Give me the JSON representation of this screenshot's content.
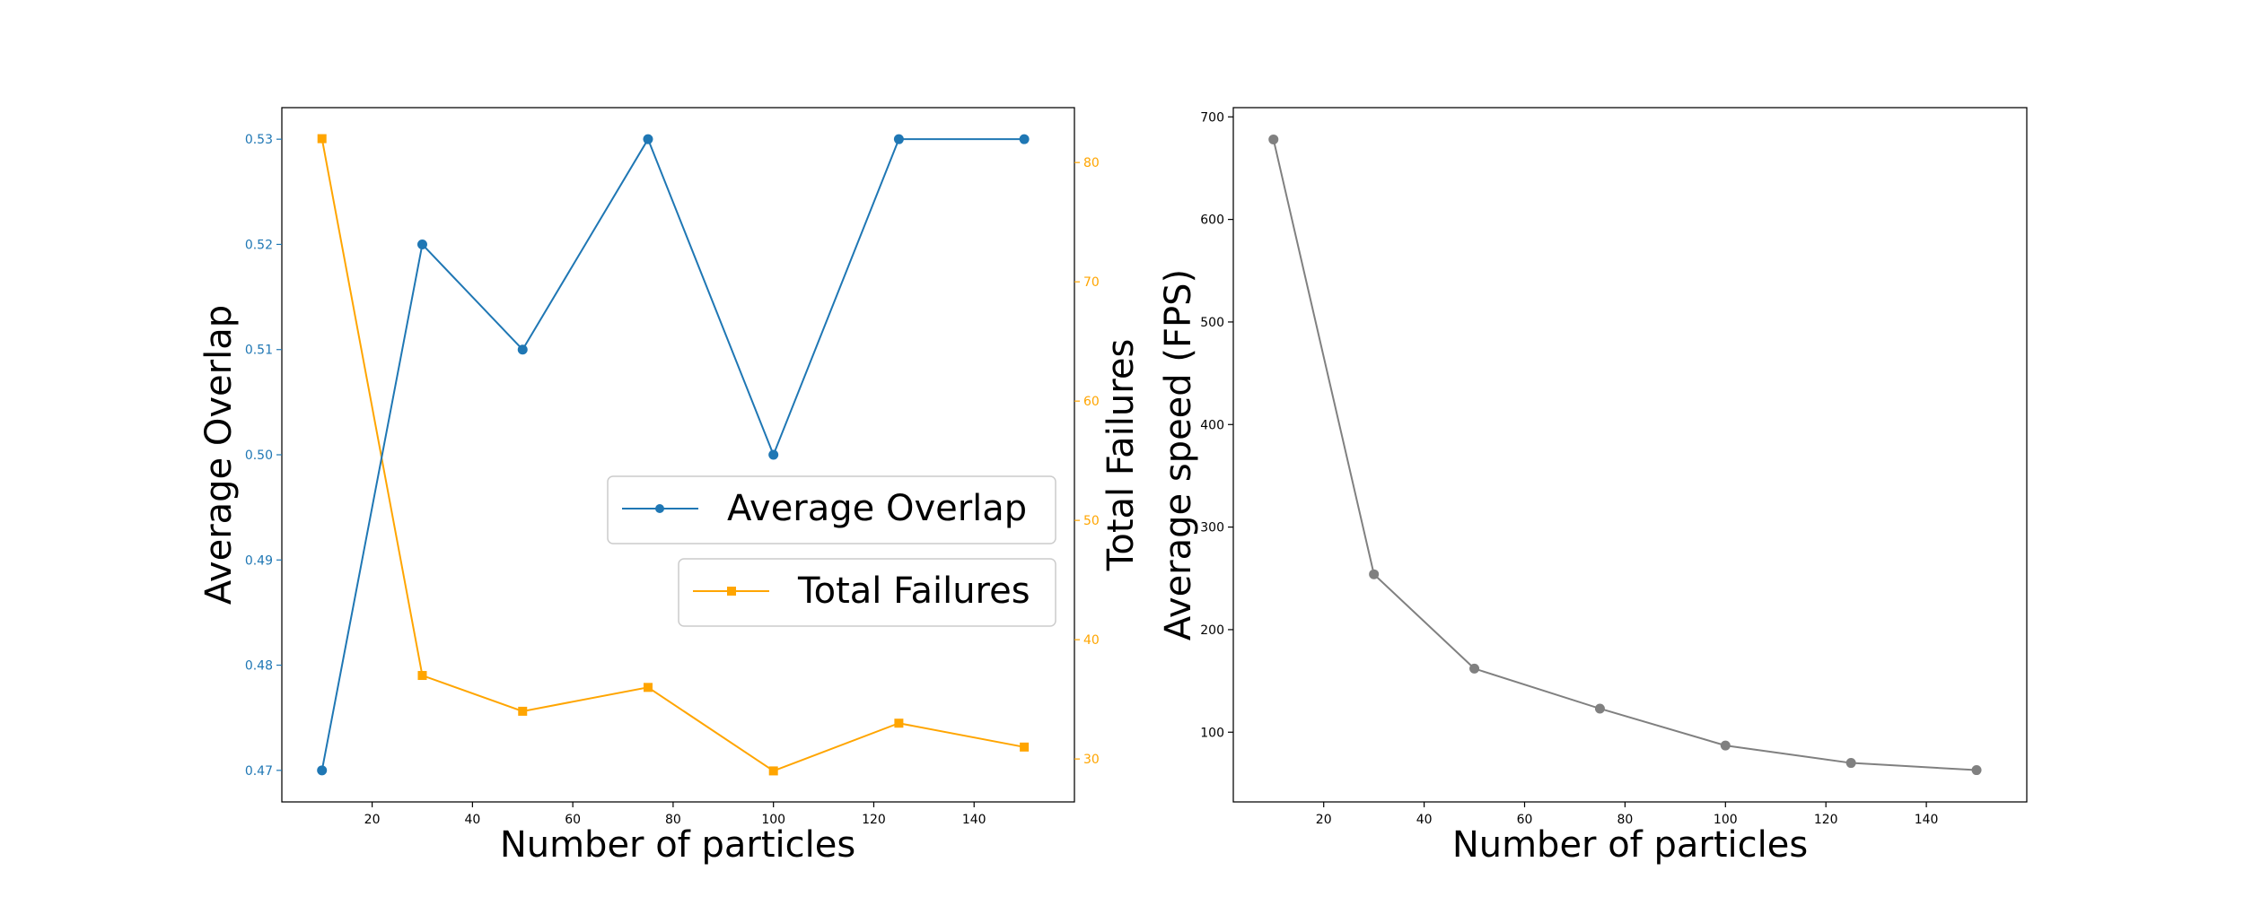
{
  "chart_data": [
    {
      "type": "line",
      "x": [
        10,
        30,
        50,
        75,
        100,
        125,
        150
      ],
      "xlabel": "Number of particles",
      "xlim": [
        2,
        160
      ],
      "xticks": [
        20,
        40,
        60,
        80,
        100,
        120,
        140
      ],
      "series": [
        {
          "name": "Average Overlap",
          "axis": "left",
          "color": "#1f77b4",
          "marker": "circle",
          "values": [
            0.47,
            0.52,
            0.51,
            0.53,
            0.5,
            0.53,
            0.53
          ]
        },
        {
          "name": "Total Failures",
          "axis": "right",
          "color": "#ffa500",
          "marker": "square",
          "values": [
            82,
            37,
            34,
            36,
            29,
            33,
            31
          ]
        }
      ],
      "ylabel_left": "Average Overlap",
      "ylim_left": [
        0.467,
        0.533
      ],
      "yticks_left": [
        "0.47",
        "0.48",
        "0.49",
        "0.50",
        "0.51",
        "0.52",
        "0.53"
      ],
      "ylabel_right": "Total Failures",
      "ylim_right": [
        26.4,
        84.6
      ],
      "yticks_right": [
        30,
        40,
        50,
        60,
        70,
        80
      ],
      "legend": "center-right",
      "grid": false
    },
    {
      "type": "line",
      "x": [
        10,
        30,
        50,
        75,
        100,
        125,
        150
      ],
      "xlabel": "Number of particles",
      "xlim": [
        2,
        160
      ],
      "xticks": [
        20,
        40,
        60,
        80,
        100,
        120,
        140
      ],
      "series": [
        {
          "color": "#808080",
          "marker": "circle",
          "values": [
            678,
            254,
            162,
            123,
            87,
            70,
            63
          ]
        }
      ],
      "ylabel": "Average speed (FPS)",
      "ylim": [
        32,
        709
      ],
      "yticks": [
        100,
        200,
        300,
        400,
        500,
        600,
        700
      ],
      "grid": false
    }
  ]
}
